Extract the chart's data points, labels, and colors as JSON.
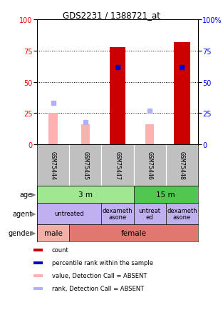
{
  "title": "GDS2231 / 1388721_at",
  "samples": [
    "GSM75444",
    "GSM75445",
    "GSM75447",
    "GSM75446",
    "GSM75448"
  ],
  "count_values": [
    0,
    0,
    78,
    0,
    82
  ],
  "percentile_rank": [
    null,
    null,
    62,
    null,
    62
  ],
  "value_absent": [
    25,
    16,
    null,
    16,
    null
  ],
  "rank_absent": [
    33,
    18,
    null,
    27,
    null
  ],
  "ylim": [
    0,
    100
  ],
  "sample_box_color": "#c0c0c0",
  "count_color": "#cc0000",
  "percentile_color": "#0000cc",
  "value_absent_color": "#ffb0b0",
  "rank_absent_color": "#b0b0ff",
  "age_defs": [
    [
      0,
      2,
      "3 m",
      "#a0e890"
    ],
    [
      3,
      4,
      "15 m",
      "#50c850"
    ]
  ],
  "agent_defs": [
    [
      0,
      1,
      "untreated",
      "#c0b0f0"
    ],
    [
      2,
      2,
      "dexameth\nasone",
      "#c0b0f0"
    ],
    [
      3,
      3,
      "untreat\ned",
      "#c0b0f0"
    ],
    [
      4,
      4,
      "dexameth\nasone",
      "#c0b0f0"
    ]
  ],
  "gender_defs": [
    [
      0,
      0,
      "male",
      "#f0b0a8"
    ],
    [
      1,
      4,
      "female",
      "#e07870"
    ]
  ],
  "row_labels": [
    "age",
    "agent",
    "gender"
  ],
  "legend_items": [
    {
      "color": "#cc0000",
      "label": "count"
    },
    {
      "color": "#0000cc",
      "label": "percentile rank within the sample"
    },
    {
      "color": "#ffb0b0",
      "label": "value, Detection Call = ABSENT"
    },
    {
      "color": "#b0b0ff",
      "label": "rank, Detection Call = ABSENT"
    }
  ]
}
